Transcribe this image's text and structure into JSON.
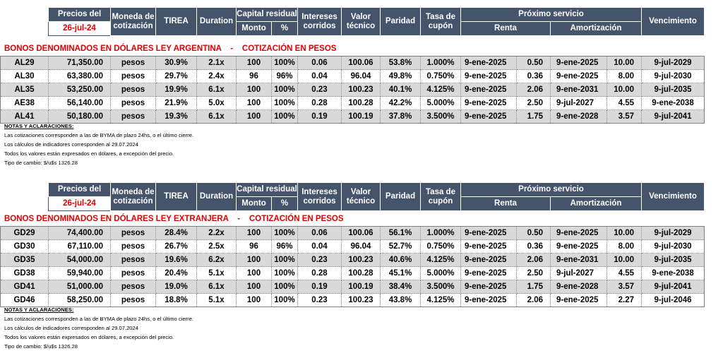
{
  "header": {
    "precios_del": "Precios del",
    "fecha": "26-jul-24",
    "moneda_1": "Moneda de",
    "moneda_2": "cotización",
    "tirea": "TIREA",
    "duration": "Duration",
    "capital_residual": "Capital residual",
    "monto": "Monto",
    "pct": "%",
    "intereses_1": "Intereses",
    "intereses_2": "corridos",
    "valor_1": "Valor",
    "valor_2": "técnico",
    "paridad": "Paridad",
    "tasa_1": "Tasa de",
    "tasa_2": "cupón",
    "proximo_servicio": "Próximo servicio",
    "renta": "Renta",
    "amortizacion": "Amortización",
    "vencimiento": "Vencimiento"
  },
  "section_argentina": {
    "title": "BONOS DENOMINADOS EN DÓLARES LEY ARGENTINA    -    COTIZACIÓN EN PESOS",
    "rows": [
      {
        "ticker": "AL29",
        "precio": "71,350.00",
        "moneda": "pesos",
        "tirea": "30.9%",
        "duration": "2.1x",
        "monto": "100",
        "pct": "100%",
        "intereses": "0.06",
        "valor": "100.06",
        "paridad": "53.8%",
        "tasa": "1.000%",
        "renta_fecha": "9-ene-2025",
        "renta_monto": "0.50",
        "amort_fecha": "9-ene-2025",
        "amort_monto": "10.00",
        "vencimiento": "9-jul-2029"
      },
      {
        "ticker": "AL30",
        "precio": "63,380.00",
        "moneda": "pesos",
        "tirea": "29.7%",
        "duration": "2.4x",
        "monto": "96",
        "pct": "96%",
        "intereses": "0.04",
        "valor": "96.04",
        "paridad": "49.8%",
        "tasa": "0.750%",
        "renta_fecha": "9-ene-2025",
        "renta_monto": "0.36",
        "amort_fecha": "9-ene-2025",
        "amort_monto": "8.00",
        "vencimiento": "9-jul-2030"
      },
      {
        "ticker": "AL35",
        "precio": "53,250.00",
        "moneda": "pesos",
        "tirea": "19.9%",
        "duration": "6.1x",
        "monto": "100",
        "pct": "100%",
        "intereses": "0.23",
        "valor": "100.23",
        "paridad": "40.1%",
        "tasa": "4.125%",
        "renta_fecha": "9-ene-2025",
        "renta_monto": "2.06",
        "amort_fecha": "9-ene-2031",
        "amort_monto": "10.00",
        "vencimiento": "9-jul-2035"
      },
      {
        "ticker": "AE38",
        "precio": "56,140.00",
        "moneda": "pesos",
        "tirea": "21.9%",
        "duration": "5.0x",
        "monto": "100",
        "pct": "100%",
        "intereses": "0.28",
        "valor": "100.28",
        "paridad": "42.2%",
        "tasa": "5.000%",
        "renta_fecha": "9-ene-2025",
        "renta_monto": "2.50",
        "amort_fecha": "9-jul-2027",
        "amort_monto": "4.55",
        "vencimiento": "9-ene-2038"
      },
      {
        "ticker": "AL41",
        "precio": "50,180.00",
        "moneda": "pesos",
        "tirea": "19.3%",
        "duration": "6.1x",
        "monto": "100",
        "pct": "100%",
        "intereses": "0.19",
        "valor": "100.19",
        "paridad": "37.8%",
        "tasa": "3.500%",
        "renta_fecha": "9-ene-2025",
        "renta_monto": "1.75",
        "amort_fecha": "9-ene-2028",
        "amort_monto": "3.57",
        "vencimiento": "9-jul-2041"
      }
    ]
  },
  "section_extranjera": {
    "title": "BONOS DENOMINADOS EN DÓLARES LEY EXTRANJERA    -    COTIZACIÓN EN PESOS",
    "rows": [
      {
        "ticker": "GD29",
        "precio": "74,400.00",
        "moneda": "pesos",
        "tirea": "28.4%",
        "duration": "2.2x",
        "monto": "100",
        "pct": "100%",
        "intereses": "0.06",
        "valor": "100.06",
        "paridad": "56.1%",
        "tasa": "1.000%",
        "renta_fecha": "9-ene-2025",
        "renta_monto": "0.50",
        "amort_fecha": "9-ene-2025",
        "amort_monto": "10.00",
        "vencimiento": "9-jul-2029"
      },
      {
        "ticker": "GD30",
        "precio": "67,110.00",
        "moneda": "pesos",
        "tirea": "26.7%",
        "duration": "2.5x",
        "monto": "96",
        "pct": "96%",
        "intereses": "0.04",
        "valor": "96.04",
        "paridad": "52.7%",
        "tasa": "0.750%",
        "renta_fecha": "9-ene-2025",
        "renta_monto": "0.36",
        "amort_fecha": "9-ene-2025",
        "amort_monto": "8.00",
        "vencimiento": "9-jul-2030"
      },
      {
        "ticker": "GD35",
        "precio": "54,000.00",
        "moneda": "pesos",
        "tirea": "19.6%",
        "duration": "6.2x",
        "monto": "100",
        "pct": "100%",
        "intereses": "0.23",
        "valor": "100.23",
        "paridad": "40.6%",
        "tasa": "4.125%",
        "renta_fecha": "9-ene-2025",
        "renta_monto": "2.06",
        "amort_fecha": "9-ene-2031",
        "amort_monto": "10.00",
        "vencimiento": "9-jul-2035"
      },
      {
        "ticker": "GD38",
        "precio": "59,940.00",
        "moneda": "pesos",
        "tirea": "20.4%",
        "duration": "5.1x",
        "monto": "100",
        "pct": "100%",
        "intereses": "0.28",
        "valor": "100.28",
        "paridad": "45.1%",
        "tasa": "5.000%",
        "renta_fecha": "9-ene-2025",
        "renta_monto": "2.50",
        "amort_fecha": "9-jul-2027",
        "amort_monto": "4.55",
        "vencimiento": "9-ene-2038"
      },
      {
        "ticker": "GD41",
        "precio": "51,000.00",
        "moneda": "pesos",
        "tirea": "19.0%",
        "duration": "6.1x",
        "monto": "100",
        "pct": "100%",
        "intereses": "0.19",
        "valor": "100.19",
        "paridad": "38.4%",
        "tasa": "3.500%",
        "renta_fecha": "9-ene-2025",
        "renta_monto": "1.75",
        "amort_fecha": "9-ene-2028",
        "amort_monto": "3.57",
        "vencimiento": "9-jul-2041"
      },
      {
        "ticker": "GD46",
        "precio": "58,250.00",
        "moneda": "pesos",
        "tirea": "18.8%",
        "duration": "5.1x",
        "monto": "100",
        "pct": "100%",
        "intereses": "0.23",
        "valor": "100.23",
        "paridad": "43.8%",
        "tasa": "4.125%",
        "renta_fecha": "9-ene-2025",
        "renta_monto": "2.06",
        "amort_fecha": "9-ene-2025",
        "amort_monto": "2.27",
        "vencimiento": "9-jul-2046"
      }
    ]
  },
  "notes": {
    "title": "NOTAS Y ACLARACIONES:",
    "lines": [
      "Las cotizaciones corresponden a las de BYMA de plazo 24hs, o el último cierre.",
      "Los cálculos de indicadores corresponden al 29.07.2024",
      "Todos los valores están expresados en dólares, a excepción del precio.",
      "Tipo de cambio: $/u$s 1326.28"
    ]
  },
  "colors": {
    "header_bg": "#44546a",
    "title_red": "#e00000",
    "row_shade": "#d9d9d9"
  }
}
